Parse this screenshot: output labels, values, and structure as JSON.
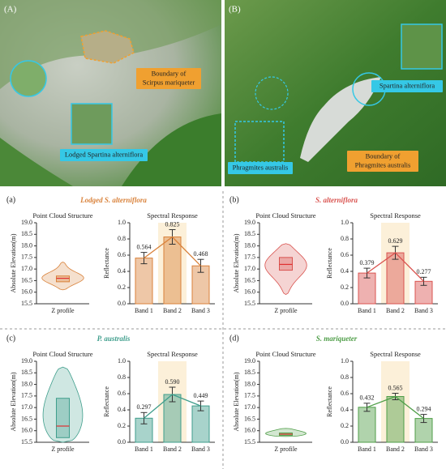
{
  "photos": [
    {
      "label": "(A)",
      "annotations": [
        {
          "text": [
            "Boundary of",
            "Scirpus mariqueter"
          ]
        },
        {
          "text": [
            "Lodged Spartina alterniflora"
          ]
        }
      ]
    },
    {
      "label": "(B)",
      "annotations": [
        {
          "text": [
            "Spartina alterniflora"
          ]
        },
        {
          "text": [
            "Phragmites australis"
          ]
        },
        {
          "text": [
            "Boundary of",
            "Phragmites australis"
          ]
        }
      ]
    }
  ],
  "panels": [
    {
      "label": "(a)",
      "title": "Lodged S. alterniflora",
      "color": "#d9823b"
    },
    {
      "label": "(b)",
      "title": "S. alterniflora",
      "color": "#d9534f"
    },
    {
      "label": "(c)",
      "title": "P. australis",
      "color": "#3f9e8c"
    },
    {
      "label": "(d)",
      "title": "S. mariqueter",
      "color": "#4f9e48"
    }
  ],
  "chart_data": [
    {
      "type": "violin",
      "title": "Point Cloud Structure",
      "y_label": "Absolute Elevation(m)",
      "categories": [
        "Z profile"
      ],
      "color": "#d9823b",
      "min": 16.1,
      "q1": 16.45,
      "median": 16.6,
      "q3": 16.7,
      "max": 17.3,
      "ylim": [
        15.5,
        19.0
      ],
      "yticks": [
        15.5,
        {
          "value": 16,
          "label": "16.0"
        },
        16.5,
        {
          "value": 17,
          "label": "17.0"
        },
        17.5,
        {
          "value": 18,
          "label": "18.0"
        },
        18.5,
        {
          "value": 19,
          "label": "19.0"
        }
      ]
    },
    {
      "type": "bar",
      "title": "Spectral Response",
      "y_label": "Reflectance",
      "categories": [
        "Band 1",
        "Band 2",
        "Band 3"
      ],
      "color": "#d9823b",
      "values": [
        0.564,
        0.825,
        0.468
      ],
      "value_labels": [
        "0.564",
        "0.825",
        "0.468"
      ],
      "errors": [
        0.07,
        0.09,
        0.08
      ],
      "ylim": [
        0,
        1
      ],
      "yticks": [
        {
          "value": 0,
          "label": "0.0"
        },
        0.2,
        0.4,
        0.6,
        0.8,
        {
          "value": 1,
          "label": "1.0"
        }
      ]
    },
    {
      "type": "violin",
      "title": "Point Cloud Structure",
      "y_label": "Absolute Elevation(m)",
      "categories": [
        "Z profile"
      ],
      "color": "#d9534f",
      "min": 15.9,
      "q1": 16.95,
      "median": 17.2,
      "q3": 17.5,
      "max": 18.1,
      "ylim": [
        15.5,
        19.0
      ],
      "yticks": [
        15.5,
        {
          "value": 16,
          "label": "16.0"
        },
        16.5,
        {
          "value": 17,
          "label": "17.0"
        },
        17.5,
        {
          "value": 18,
          "label": "18.0"
        },
        18.5,
        {
          "value": 19,
          "label": "19.0"
        }
      ]
    },
    {
      "type": "bar",
      "title": "Spectral Response",
      "y_label": "Reflectance",
      "categories": [
        "Band 1",
        "Band 2",
        "Band 3"
      ],
      "color": "#d9534f",
      "values": [
        0.379,
        0.629,
        0.277
      ],
      "value_labels": [
        "0.379",
        "0.629",
        "0.277"
      ],
      "errors": [
        0.06,
        0.08,
        0.05
      ],
      "ylim": [
        0,
        1
      ],
      "yticks": [
        {
          "value": 0,
          "label": "0.0"
        },
        0.2,
        0.4,
        0.6,
        0.8,
        {
          "value": 1,
          "label": "1.0"
        }
      ]
    },
    {
      "type": "violin",
      "title": "Point Cloud Structure",
      "y_label": "Absolute Elevation(m)",
      "categories": [
        "Z profile"
      ],
      "color": "#3f9e8c",
      "min": 15.5,
      "q1": 15.7,
      "median": 16.2,
      "q3": 17.4,
      "max": 18.75,
      "ylim": [
        15.5,
        19.0
      ],
      "yticks": [
        15.5,
        {
          "value": 16,
          "label": "16.0"
        },
        16.5,
        {
          "value": 17,
          "label": "17.0"
        },
        17.5,
        {
          "value": 18,
          "label": "18.0"
        },
        18.5,
        {
          "value": 19,
          "label": "19.0"
        }
      ]
    },
    {
      "type": "bar",
      "title": "Spectral Response",
      "y_label": "Reflectance",
      "categories": [
        "Band 1",
        "Band 2",
        "Band 3"
      ],
      "color": "#3f9e8c",
      "values": [
        0.297,
        0.59,
        0.449
      ],
      "value_labels": [
        "0.297",
        "0.590",
        "0.449"
      ],
      "errors": [
        0.07,
        0.09,
        0.06
      ],
      "ylim": [
        0,
        1
      ],
      "yticks": [
        {
          "value": 0,
          "label": "0.0"
        },
        0.2,
        0.4,
        0.6,
        0.8,
        {
          "value": 1,
          "label": "1.0"
        }
      ]
    },
    {
      "type": "violin",
      "title": "Point Cloud Structure",
      "y_label": "Absolute Elevation(m)",
      "categories": [
        "Z profile"
      ],
      "color": "#4f9e48",
      "min": 15.75,
      "q1": 15.8,
      "median": 15.85,
      "q3": 15.9,
      "max": 16.1,
      "ylim": [
        15.5,
        19.0
      ],
      "yticks": [
        15.5,
        {
          "value": 16,
          "label": "16.0"
        },
        16.5,
        {
          "value": 17,
          "label": "17.0"
        },
        17.5,
        {
          "value": 18,
          "label": "18.0"
        },
        18.5,
        {
          "value": 19,
          "label": "19.0"
        }
      ]
    },
    {
      "type": "bar",
      "title": "Spectral Response",
      "y_label": "Reflectance",
      "categories": [
        "Band 1",
        "Band 2",
        "Band 3"
      ],
      "color": "#4f9e48",
      "values": [
        0.432,
        0.565,
        0.294
      ],
      "value_labels": [
        "0.432",
        "0.565",
        "0.294"
      ],
      "errors": [
        0.05,
        0.04,
        0.05
      ],
      "ylim": [
        0,
        1
      ],
      "yticks": [
        {
          "value": 0,
          "label": "0.0"
        },
        0.2,
        0.4,
        0.6,
        0.8,
        {
          "value": 1,
          "label": "1.0"
        }
      ]
    }
  ]
}
